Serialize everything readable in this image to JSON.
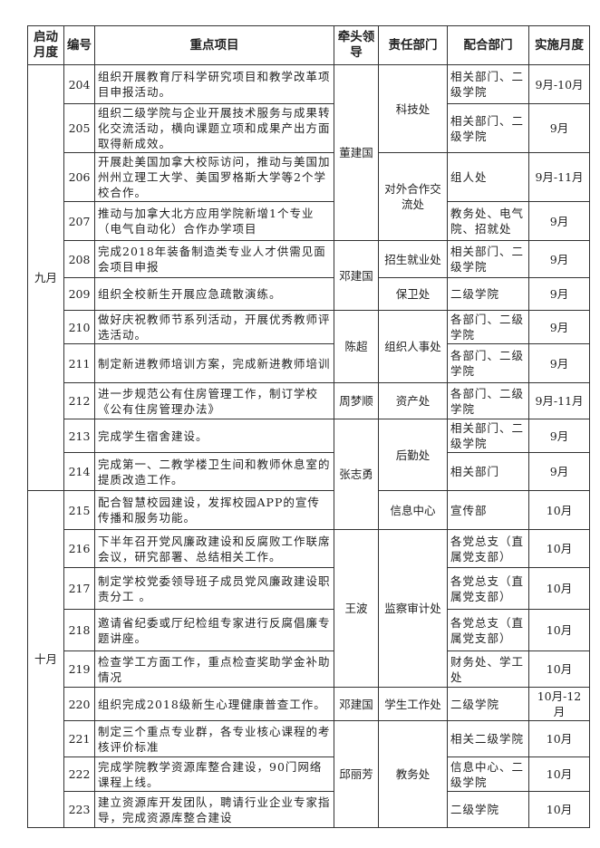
{
  "headers": [
    "启动月度",
    "编号",
    "重点项目",
    "牵头领导",
    "责任部门",
    "配合部门",
    "实施月度"
  ],
  "rows": [
    {
      "no": "204",
      "project": "组织开展教育厅科学研究项目和教学改革项目申报活动。",
      "coop": "相关部门、二级学院",
      "month": "9月-10月"
    },
    {
      "no": "205",
      "project": "组织二级学院与企业开展技术服务与成果转化交流活动，横向课题立项和成果产出方面取得新成效。",
      "coop": "相关部门、二级学院",
      "month": "9月"
    },
    {
      "no": "206",
      "project": "开展赴美国加拿大校际访问，推动与美国加州州立理工大学、美国罗格斯大学等2个学校合作。",
      "coop": "组人处",
      "month": "9月-11月"
    },
    {
      "no": "207",
      "project": "推动与加拿大北方应用学院新增1个专业（电气自动化）合作办学项目",
      "coop": "教务处、电气院、招就处",
      "month": "9月"
    },
    {
      "no": "208",
      "project": "完成2018年装备制造类专业人才供需见面会项目申报",
      "coop": "相关部门、二级学院",
      "month": "9月"
    },
    {
      "no": "209",
      "project": "组织全校新生开展应急疏散演练。",
      "coop": "二级学院",
      "month": "9月"
    },
    {
      "no": "210",
      "project": "做好庆祝教师节系列活动，开展优秀教师评选活动。",
      "coop": "各部门、二级学院",
      "month": "9月"
    },
    {
      "no": "211",
      "project": "制定新进教师培训方案，完成新进教师培训",
      "coop": "各部门、二级学院",
      "month": "9月"
    },
    {
      "no": "212",
      "project": "进一步规范公有住房管理工作，制订学校《公有住房管理办法》",
      "coop": "各部门、二级学院",
      "month": "9月-11月"
    },
    {
      "no": "213",
      "project": "完成学生宿舍建设。",
      "coop": "相关部门、二级学院",
      "month": "9月"
    },
    {
      "no": "214",
      "project": "完成第一、二教学楼卫生间和教师休息室的提质改造工作。",
      "coop": "相关部门",
      "month": "9月"
    },
    {
      "no": "215",
      "project": "配合智慧校园建设，发挥校园APP的宣传传播和服务功能。",
      "coop": "宣传部",
      "month": "10月"
    },
    {
      "no": "216",
      "project": "下半年召开党风廉政建设和反腐败工作联席会议，研究部署、总结相关工作。",
      "coop": "各党总支（直属党支部）",
      "month": "10月"
    },
    {
      "no": "217",
      "project": "制定学校党委领导班子成员党风廉政建设职责分工 。",
      "coop": "各党总支（直属党支部）",
      "month": "10月"
    },
    {
      "no": "218",
      "project": "邀请省纪委或厅纪检组专家进行反腐倡廉专题讲座。",
      "coop": "各党总支（直属党支部）",
      "month": "10月"
    },
    {
      "no": "219",
      "project": "检查学工方面工作，重点检查奖助学金补助情况",
      "coop": "财务处、学工处",
      "month": "10月"
    },
    {
      "no": "220",
      "project": "组织完成2018级新生心理健康普查工作。",
      "coop": "二级学院",
      "month": "10月-12月"
    },
    {
      "no": "221",
      "project": "制定三个重点专业群，各专业核心课程的考核评价标准",
      "coop": "相关二级学院",
      "month": "10月"
    },
    {
      "no": "222",
      "project": "完成学院教学资源库整合建设，90门网络课程上线。",
      "coop": "信息中心、二级学院",
      "month": "10月"
    },
    {
      "no": "223",
      "project": "建立资源库开发团队，聘请行业企业专家指导，完成资源库整合建设",
      "coop": "二级学院",
      "month": "10月"
    }
  ],
  "start_months": [
    {
      "label": "九月",
      "rows": 11
    },
    {
      "label": "十月",
      "rows": 9
    }
  ],
  "leaders": [
    {
      "label": "董建国",
      "rows": 4
    },
    {
      "label": "邓建国",
      "rows": 2
    },
    {
      "label": "陈超",
      "rows": 2
    },
    {
      "label": "周梦顺",
      "rows": 1
    },
    {
      "label": "张志勇",
      "rows": 3
    },
    {
      "label": "王波",
      "rows": 4
    },
    {
      "label": "邓建国",
      "rows": 1
    },
    {
      "label": "邱丽芳",
      "rows": 3
    }
  ],
  "departments": [
    {
      "label": "科技处",
      "rows": 2
    },
    {
      "label": "对外合作交流处",
      "rows": 2
    },
    {
      "label": "招生就业处",
      "rows": 1
    },
    {
      "label": "保卫处",
      "rows": 1
    },
    {
      "label": "组织人事处",
      "rows": 2
    },
    {
      "label": "资产处",
      "rows": 1
    },
    {
      "label": "后勤处",
      "rows": 2
    },
    {
      "label": "信息中心",
      "rows": 1
    },
    {
      "label": "监察审计处",
      "rows": 4
    },
    {
      "label": "学生工作处",
      "rows": 1
    },
    {
      "label": "教务处",
      "rows": 3
    }
  ]
}
